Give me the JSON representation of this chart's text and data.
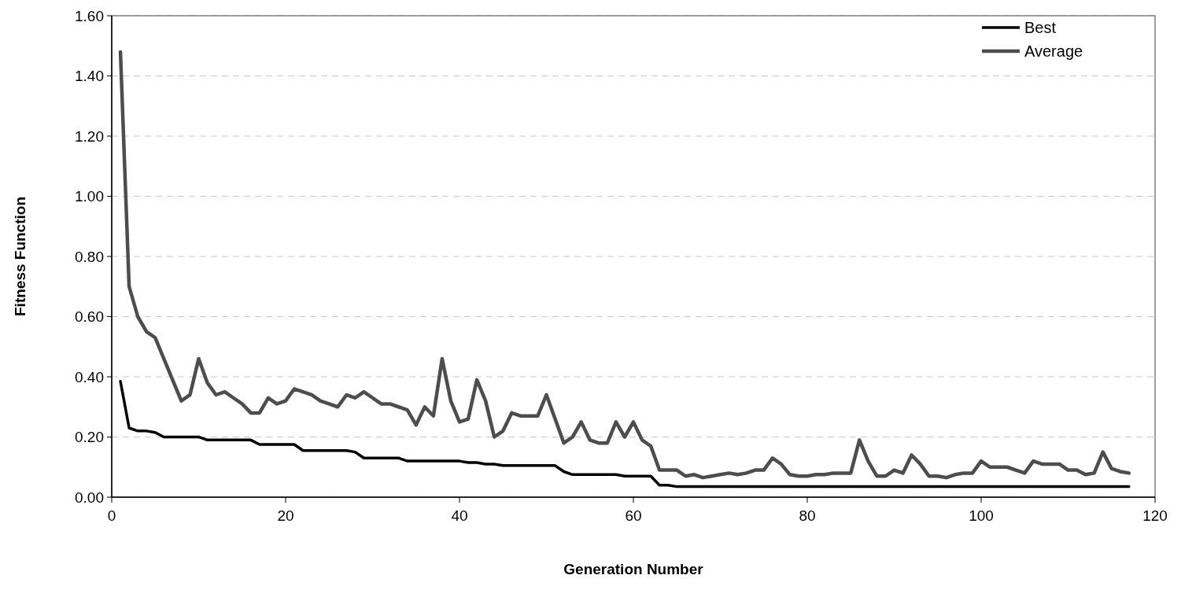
{
  "chart_data": {
    "type": "line",
    "xlabel": "Generation Number",
    "ylabel": "Fitness Function",
    "xlim": [
      0,
      120
    ],
    "xticks": [
      0,
      20,
      40,
      60,
      80,
      100,
      120
    ],
    "ylim": [
      0,
      1.6
    ],
    "yticks": [
      {
        "value": 0,
        "label": "0.00"
      },
      {
        "value": 0.2,
        "label": "0.20"
      },
      {
        "value": 0.4,
        "label": "0.40"
      },
      {
        "value": 0.6,
        "label": "0.60"
      },
      {
        "value": 0.8,
        "label": "0.80"
      },
      {
        "value": 1,
        "label": "1.00"
      },
      {
        "value": 1.2,
        "label": "1.20"
      },
      {
        "value": 1.4,
        "label": "1.40"
      },
      {
        "value": 1.6,
        "label": "1.60"
      }
    ],
    "grid": "y",
    "legend": "top right",
    "marker": "none",
    "x": [
      1,
      2,
      3,
      4,
      5,
      6,
      7,
      8,
      9,
      10,
      11,
      12,
      13,
      14,
      15,
      16,
      17,
      18,
      19,
      20,
      21,
      22,
      23,
      24,
      25,
      26,
      27,
      28,
      29,
      30,
      31,
      32,
      33,
      34,
      35,
      36,
      37,
      38,
      39,
      40,
      41,
      42,
      43,
      44,
      45,
      46,
      47,
      48,
      49,
      50,
      51,
      52,
      53,
      54,
      55,
      56,
      57,
      58,
      59,
      60,
      61,
      62,
      63,
      64,
      65,
      66,
      67,
      68,
      69,
      70,
      71,
      72,
      73,
      74,
      75,
      76,
      77,
      78,
      79,
      80,
      81,
      82,
      83,
      84,
      85,
      86,
      87,
      88,
      89,
      90,
      91,
      92,
      93,
      94,
      95,
      96,
      97,
      98,
      99,
      100,
      101,
      102,
      103,
      104,
      105,
      106,
      107,
      108,
      109,
      110,
      111,
      112,
      113,
      114,
      115,
      116,
      117
    ],
    "series": [
      {
        "name": "Best",
        "color": "#000000",
        "values": [
          0.385,
          0.23,
          0.22,
          0.22,
          0.215,
          0.2,
          0.2,
          0.2,
          0.2,
          0.2,
          0.19,
          0.19,
          0.19,
          0.19,
          0.19,
          0.19,
          0.175,
          0.175,
          0.175,
          0.175,
          0.175,
          0.155,
          0.155,
          0.155,
          0.155,
          0.155,
          0.155,
          0.15,
          0.13,
          0.13,
          0.13,
          0.13,
          0.13,
          0.12,
          0.12,
          0.12,
          0.12,
          0.12,
          0.12,
          0.12,
          0.115,
          0.115,
          0.11,
          0.11,
          0.105,
          0.105,
          0.105,
          0.105,
          0.105,
          0.105,
          0.105,
          0.085,
          0.075,
          0.075,
          0.075,
          0.075,
          0.075,
          0.075,
          0.07,
          0.07,
          0.07,
          0.07,
          0.04,
          0.04,
          0.035,
          0.035,
          0.035,
          0.035,
          0.035,
          0.035,
          0.035,
          0.035,
          0.035,
          0.035,
          0.035,
          0.035,
          0.035,
          0.035,
          0.035,
          0.035,
          0.035,
          0.035,
          0.035,
          0.035,
          0.035,
          0.035,
          0.035,
          0.035,
          0.035,
          0.035,
          0.035,
          0.035,
          0.035,
          0.035,
          0.035,
          0.035,
          0.035,
          0.035,
          0.035,
          0.035,
          0.035,
          0.035,
          0.035,
          0.035,
          0.035,
          0.035,
          0.035,
          0.035,
          0.035,
          0.035,
          0.035,
          0.035,
          0.035,
          0.035,
          0.035,
          0.035,
          0.035
        ]
      },
      {
        "name": "Average",
        "color": "#4d4d4d",
        "values": [
          1.48,
          0.7,
          0.6,
          0.55,
          0.53,
          0.46,
          0.39,
          0.32,
          0.34,
          0.46,
          0.38,
          0.34,
          0.35,
          0.33,
          0.31,
          0.28,
          0.28,
          0.33,
          0.31,
          0.32,
          0.36,
          0.35,
          0.34,
          0.32,
          0.31,
          0.3,
          0.34,
          0.33,
          0.35,
          0.33,
          0.31,
          0.31,
          0.3,
          0.29,
          0.24,
          0.3,
          0.27,
          0.46,
          0.32,
          0.25,
          0.26,
          0.39,
          0.32,
          0.2,
          0.22,
          0.28,
          0.27,
          0.27,
          0.27,
          0.34,
          0.26,
          0.18,
          0.2,
          0.25,
          0.19,
          0.18,
          0.18,
          0.25,
          0.2,
          0.25,
          0.19,
          0.17,
          0.09,
          0.09,
          0.09,
          0.07,
          0.075,
          0.065,
          0.07,
          0.075,
          0.08,
          0.075,
          0.08,
          0.09,
          0.09,
          0.13,
          0.11,
          0.075,
          0.07,
          0.07,
          0.075,
          0.075,
          0.08,
          0.08,
          0.08,
          0.19,
          0.12,
          0.07,
          0.07,
          0.09,
          0.08,
          0.14,
          0.11,
          0.07,
          0.07,
          0.065,
          0.075,
          0.08,
          0.08,
          0.12,
          0.1,
          0.1,
          0.1,
          0.09,
          0.08,
          0.12,
          0.11,
          0.11,
          0.11,
          0.09,
          0.09,
          0.075,
          0.08,
          0.15,
          0.095,
          0.085,
          0.08
        ]
      }
    ]
  }
}
